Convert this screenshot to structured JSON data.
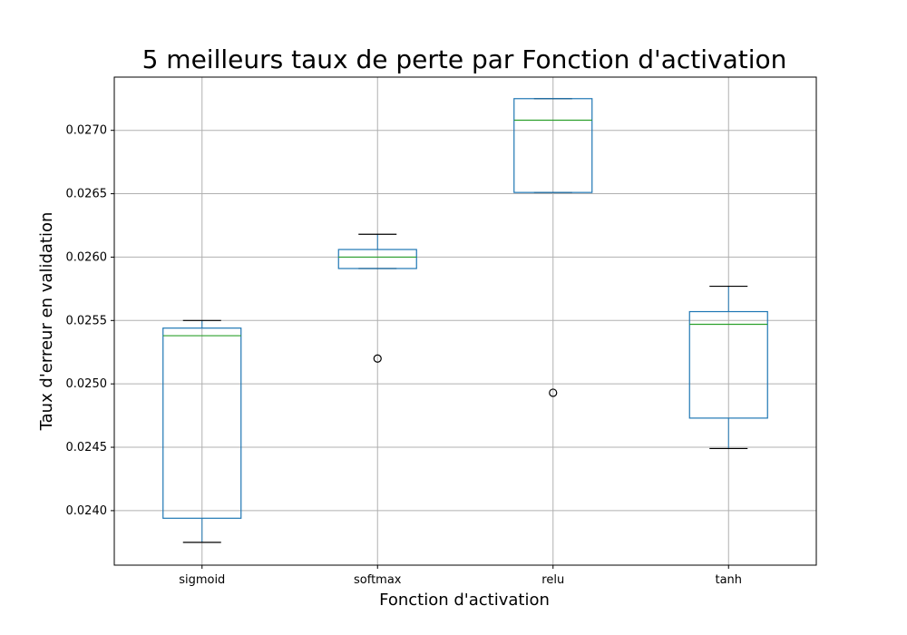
{
  "chart_data": {
    "type": "box",
    "title": "5 meilleurs taux de perte par Fonction d'activation",
    "xlabel": "Fonction d'activation",
    "ylabel": "Taux d'erreur en validation",
    "ylim": [
      0.02357,
      0.02742
    ],
    "yticks": [
      "0.0240",
      "0.0245",
      "0.0250",
      "0.0255",
      "0.0260",
      "0.0265",
      "0.0270"
    ],
    "grid": true,
    "categories": [
      "sigmoid",
      "softmax",
      "relu",
      "tanh"
    ],
    "boxes": [
      {
        "category": "sigmoid",
        "whisker_low": 0.02375,
        "q1": 0.02394,
        "median": 0.02538,
        "q3": 0.02544,
        "whisker_high": 0.0255,
        "outliers": []
      },
      {
        "category": "softmax",
        "whisker_low": 0.02591,
        "q1": 0.02591,
        "median": 0.026,
        "q3": 0.02606,
        "whisker_high": 0.02618,
        "outliers": [
          0.0252
        ]
      },
      {
        "category": "relu",
        "whisker_low": 0.02651,
        "q1": 0.02651,
        "median": 0.02708,
        "q3": 0.02725,
        "whisker_high": 0.02725,
        "outliers": [
          0.02493
        ]
      },
      {
        "category": "tanh",
        "whisker_low": 0.02449,
        "q1": 0.02473,
        "median": 0.02547,
        "q3": 0.02557,
        "whisker_high": 0.02577,
        "outliers": []
      }
    ],
    "colors": {
      "box": "#1f77b4",
      "median": "#2ca02c",
      "whisker": "#1f77b4",
      "cap": "#000000",
      "outlier": "#000000",
      "grid": "#b0b0b0"
    }
  }
}
